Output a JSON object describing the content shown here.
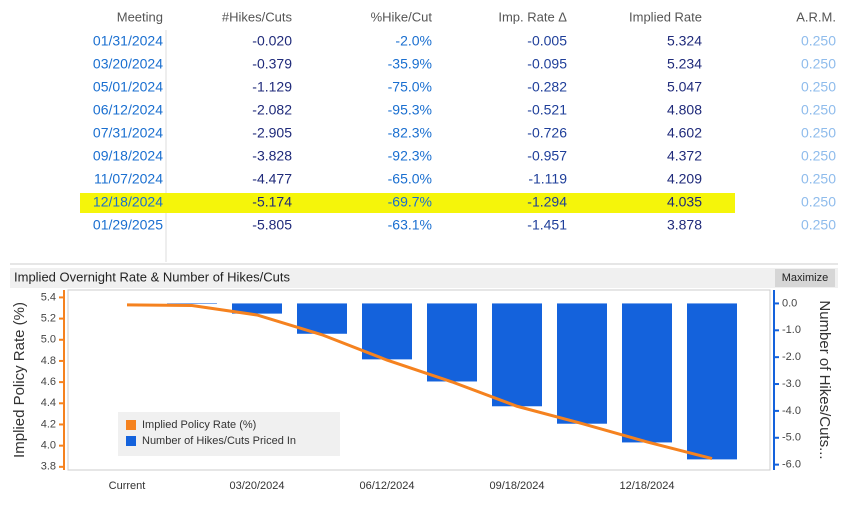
{
  "table": {
    "headers": [
      "Meeting",
      "#Hikes/Cuts",
      "%Hike/Cut",
      "Imp. Rate Δ",
      "Implied Rate",
      "A.R.M."
    ],
    "rows": [
      [
        "01/31/2024",
        "-0.020",
        "-2.0%",
        "-0.005",
        "5.324",
        "0.250"
      ],
      [
        "03/20/2024",
        "-0.379",
        "-35.9%",
        "-0.095",
        "5.234",
        "0.250"
      ],
      [
        "05/01/2024",
        "-1.129",
        "-75.0%",
        "-0.282",
        "5.047",
        "0.250"
      ],
      [
        "06/12/2024",
        "-2.082",
        "-95.3%",
        "-0.521",
        "4.808",
        "0.250"
      ],
      [
        "07/31/2024",
        "-2.905",
        "-82.3%",
        "-0.726",
        "4.602",
        "0.250"
      ],
      [
        "09/18/2024",
        "-3.828",
        "-92.3%",
        "-0.957",
        "4.372",
        "0.250"
      ],
      [
        "11/07/2024",
        "-4.477",
        "-65.0%",
        "-1.119",
        "4.209",
        "0.250"
      ],
      [
        "12/18/2024",
        "-5.174",
        "-69.7%",
        "-1.294",
        "4.035",
        "0.250"
      ],
      [
        "01/29/2025",
        "-5.805",
        "-63.1%",
        "-1.451",
        "3.878",
        "0.250"
      ]
    ],
    "highlight_row": 7
  },
  "chart_data": {
    "type": "bar-line",
    "title": "Implied Overnight Rate & Number of Hikes/Cuts",
    "button": "Maximize",
    "y_label": "Implied Policy Rate (%)",
    "y2_label": "Number of Hikes/Cuts...",
    "categories": [
      "Current",
      null,
      "03/20/2024",
      null,
      "06/12/2024",
      null,
      "09/18/2024",
      null,
      "12/18/2024",
      null
    ],
    "series": [
      {
        "name": "Implied Policy Rate (%)",
        "type": "line",
        "color": "#f5821f",
        "values": [
          5.33,
          5.324,
          5.234,
          5.047,
          4.808,
          4.602,
          4.372,
          4.209,
          4.035,
          3.878
        ]
      },
      {
        "name": "Number of Hikes/Cuts Priced In",
        "type": "bar",
        "axis": "y2",
        "color": "#1462dc",
        "values": [
          0,
          -0.02,
          -0.379,
          -1.129,
          -2.082,
          -2.905,
          -3.828,
          -4.477,
          -5.174,
          -5.805
        ]
      }
    ],
    "ylim": [
      3.77,
      5.47
    ],
    "yticks": [
      3.8,
      {
        "value": 4,
        "label": "4.0"
      },
      4.2,
      4.4,
      4.6,
      4.8,
      {
        "value": 5,
        "label": "5.0"
      },
      5.2,
      5.4
    ],
    "y2lim": [
      -6.2,
      0.5
    ],
    "y2ticks": [
      {
        "value": -6,
        "label": "-6.0"
      },
      {
        "value": -5,
        "label": "-5.0"
      },
      {
        "value": -4,
        "label": "-4.0"
      },
      {
        "value": -3,
        "label": "-3.0"
      },
      {
        "value": -2,
        "label": "-2.0"
      },
      {
        "value": -1,
        "label": "-1.0"
      },
      {
        "value": 0,
        "label": "0.0"
      }
    ],
    "grid": false,
    "legend": "lower left"
  }
}
